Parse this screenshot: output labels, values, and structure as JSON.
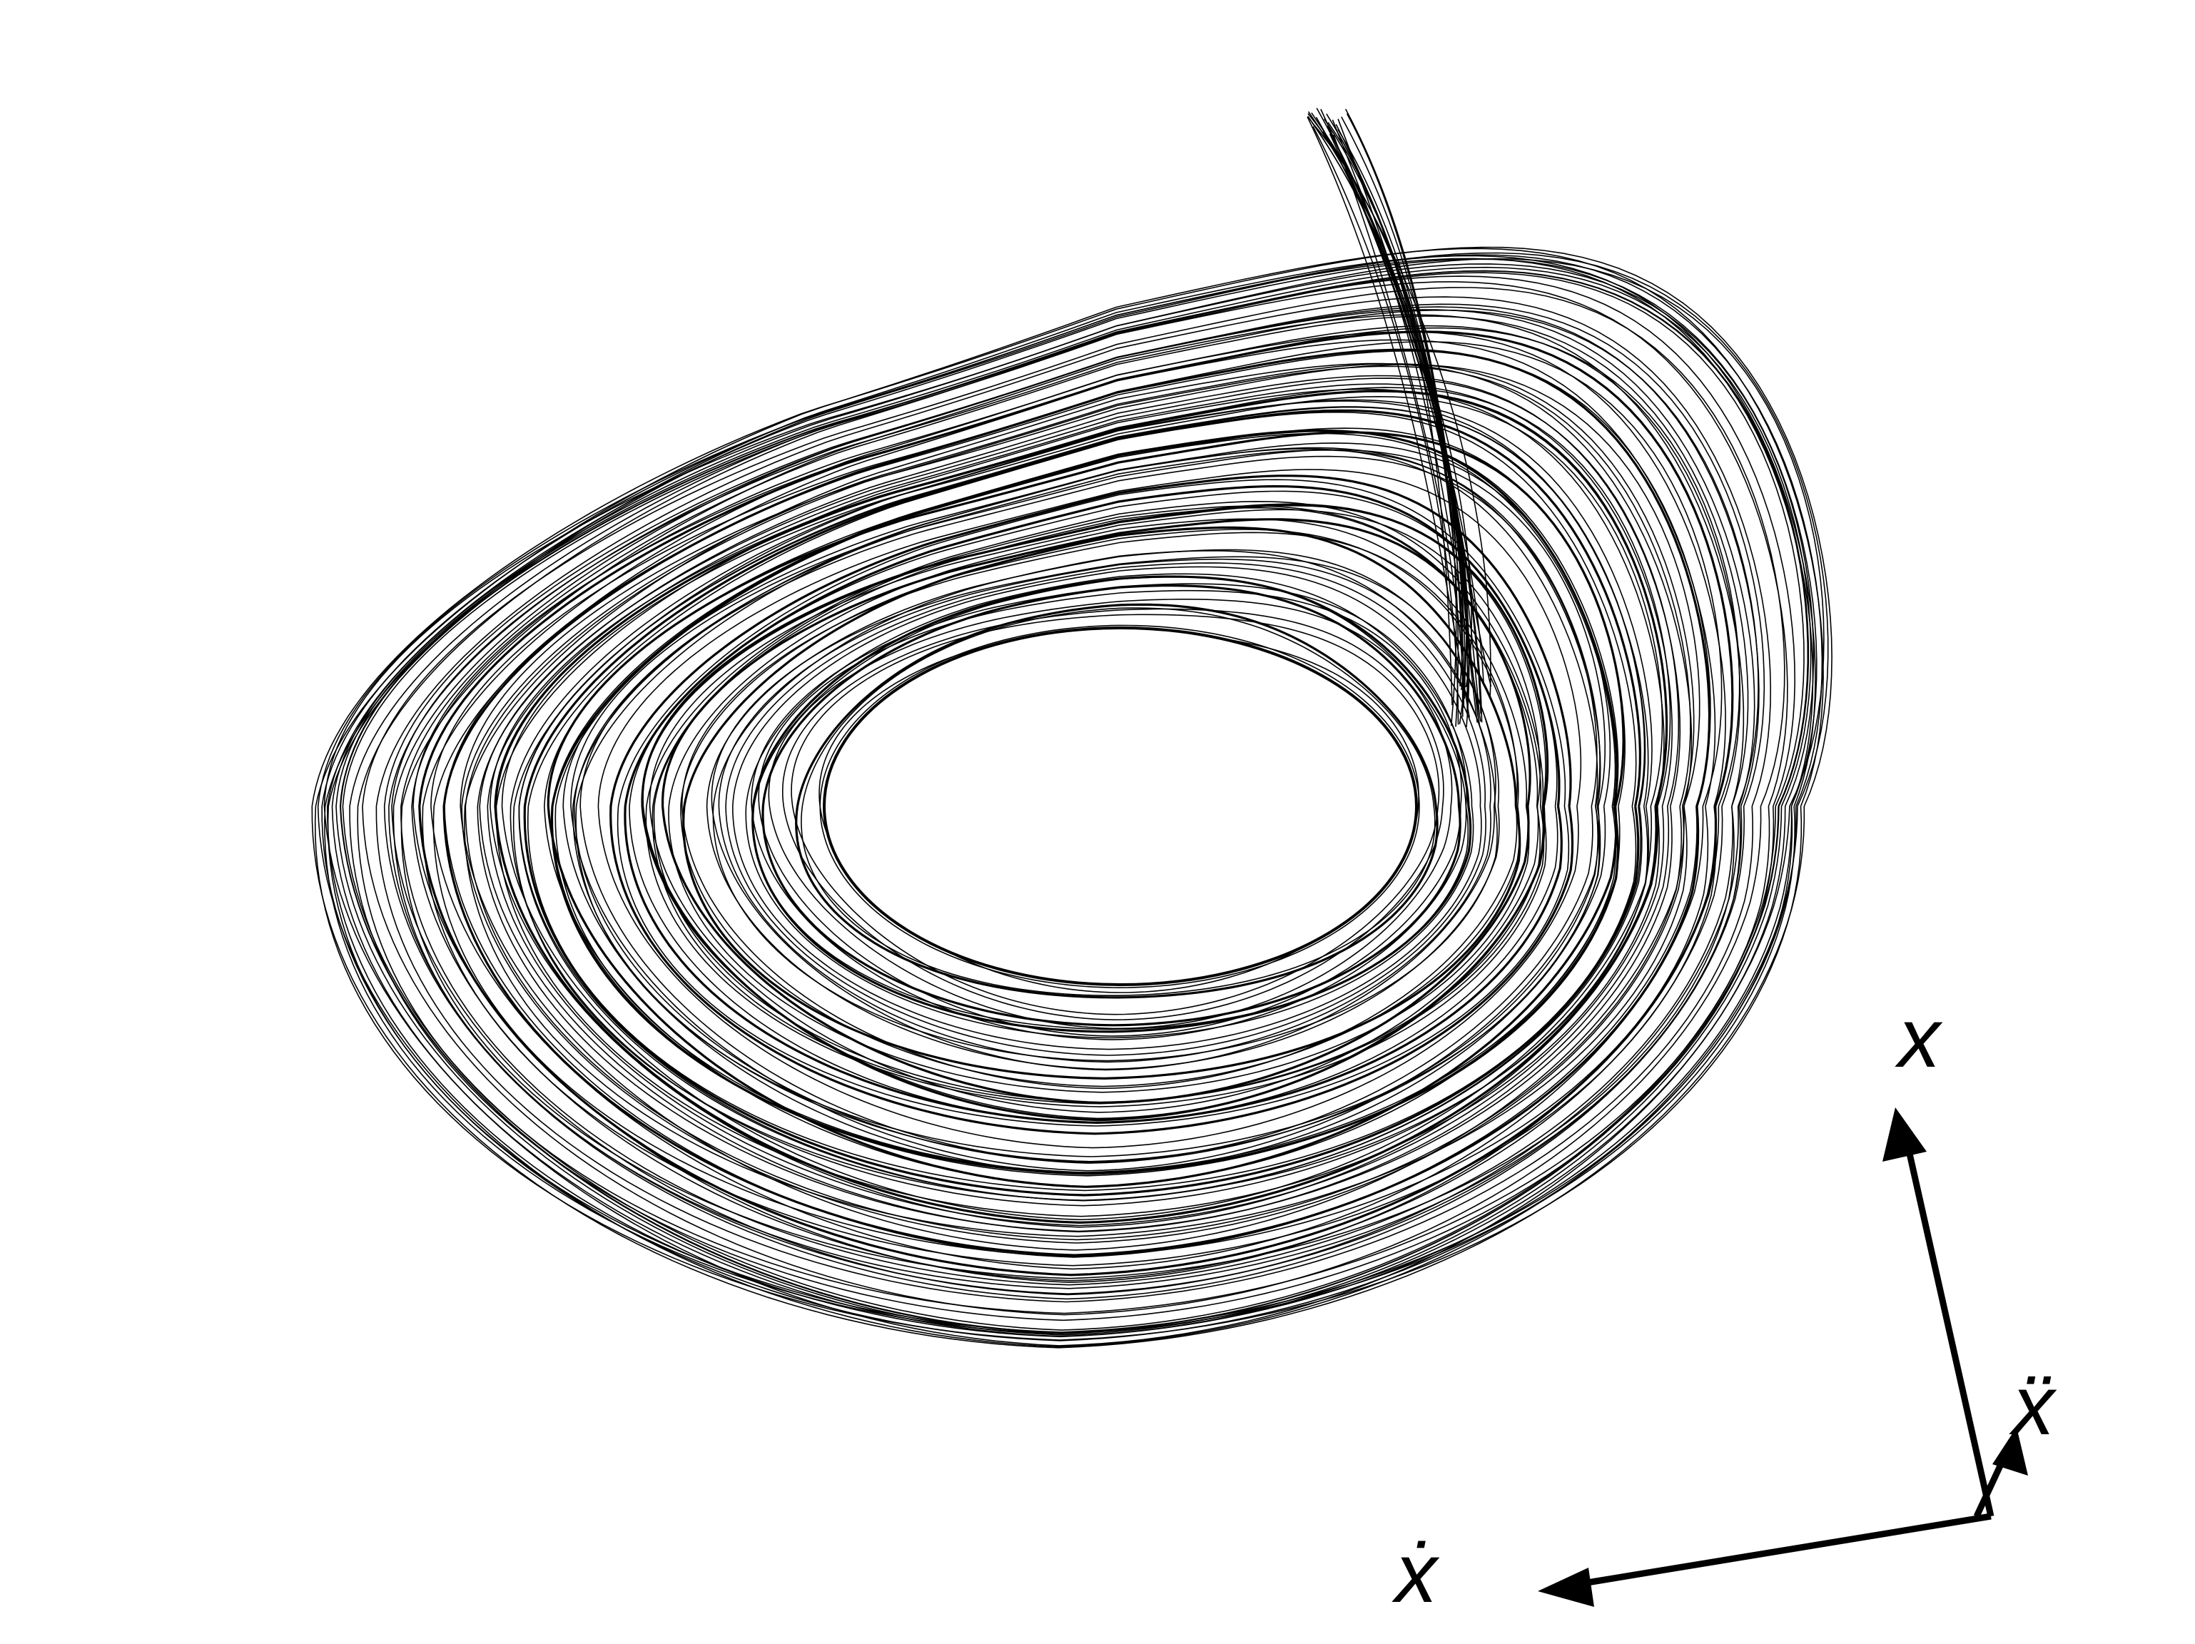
{
  "diagram": {
    "type": "3d-phase-portrait",
    "description_kind": "attractor-trajectory",
    "line_color": "#000000",
    "background_color": "#ffffff",
    "axes": [
      {
        "key": "x",
        "label": "x"
      },
      {
        "key": "x_dot",
        "label": "ẋ"
      },
      {
        "key": "x_ddot",
        "label": "ẍ"
      }
    ]
  }
}
